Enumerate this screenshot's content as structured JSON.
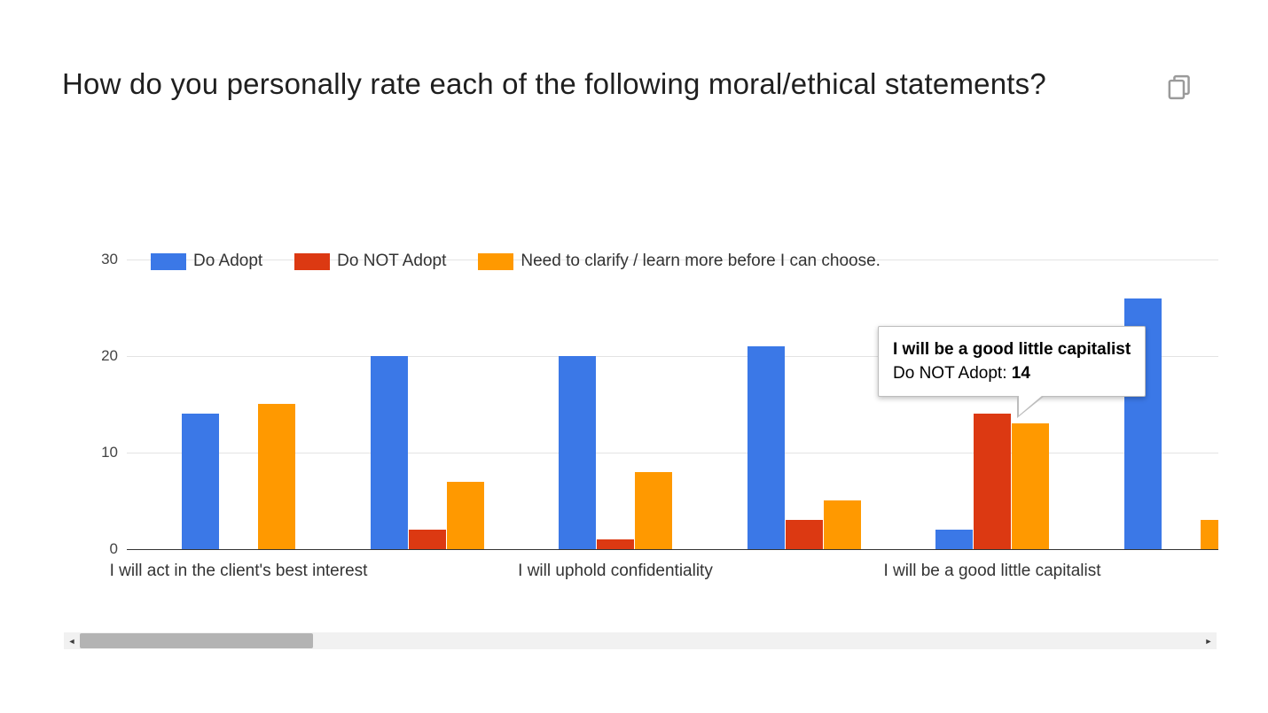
{
  "header": {
    "title": "How do you personally rate each of the following moral/ethical statements?"
  },
  "icons": {
    "copy_chart": "copy-icon",
    "scrollbar_left": "◄",
    "scrollbar_right": "►"
  },
  "chart_data": {
    "type": "bar",
    "title": "How do you personally rate each of the following moral/ethical statements?",
    "legend_position": "top",
    "grid": true,
    "ylim": [
      0,
      30
    ],
    "yticks": [
      0,
      10,
      20,
      30
    ],
    "categories": [
      "I will act in the client's best interest",
      "",
      "I will uphold confidentiality",
      "",
      "I will be a good little capitalist",
      ""
    ],
    "visible_axis_labels": [
      "I will act in the client's best interest",
      "I will uphold confidentiality",
      "I will be a good little capitalist"
    ],
    "series": [
      {
        "name": "Do Adopt",
        "color": "#3b78e7",
        "values": [
          14,
          20,
          20,
          21,
          2,
          26
        ]
      },
      {
        "name": "Do NOT Adopt",
        "color": "#dc3912",
        "values": [
          0,
          2,
          1,
          3,
          14,
          0
        ]
      },
      {
        "name": "Need to clarify / learn more before I can choose.",
        "color": "#ff9900",
        "values": [
          15,
          7,
          8,
          5,
          13,
          3
        ]
      }
    ]
  },
  "tooltip": {
    "title": "I will be a good little capitalist",
    "series_label": "Do NOT Adopt: ",
    "value": "14"
  }
}
